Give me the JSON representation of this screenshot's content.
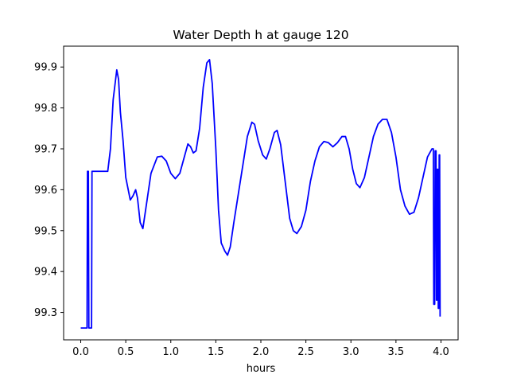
{
  "chart_data": {
    "type": "line",
    "title": "Water Depth h at gauge 120",
    "xlabel": "hours",
    "ylabel": "",
    "xlim": [
      -0.19,
      4.19
    ],
    "ylim": [
      99.233,
      99.951
    ],
    "xticks": [
      0.0,
      0.5,
      1.0,
      1.5,
      2.0,
      2.5,
      3.0,
      3.5,
      4.0
    ],
    "xtick_labels": [
      "0.0",
      "0.5",
      "1.0",
      "1.5",
      "2.0",
      "2.5",
      "3.0",
      "3.5",
      "4.0"
    ],
    "yticks": [
      99.3,
      99.4,
      99.5,
      99.6,
      99.7,
      99.8,
      99.9
    ],
    "ytick_labels": [
      "99.3",
      "99.4",
      "99.5",
      "99.6",
      "99.7",
      "99.8",
      "99.9"
    ],
    "grid": false,
    "legend": "none",
    "series": [
      {
        "color": "#0000ff",
        "points": [
          [
            0.0,
            99.262
          ],
          [
            0.07,
            99.262
          ],
          [
            0.075,
            99.645
          ],
          [
            0.085,
            99.645
          ],
          [
            0.09,
            99.262
          ],
          [
            0.12,
            99.262
          ],
          [
            0.125,
            99.645
          ],
          [
            0.2,
            99.645
          ],
          [
            0.3,
            99.645
          ],
          [
            0.33,
            99.7
          ],
          [
            0.36,
            99.82
          ],
          [
            0.4,
            99.893
          ],
          [
            0.42,
            99.87
          ],
          [
            0.44,
            99.79
          ],
          [
            0.47,
            99.72
          ],
          [
            0.5,
            99.63
          ],
          [
            0.55,
            99.575
          ],
          [
            0.58,
            99.585
          ],
          [
            0.61,
            99.6
          ],
          [
            0.63,
            99.58
          ],
          [
            0.66,
            99.52
          ],
          [
            0.69,
            99.505
          ],
          [
            0.72,
            99.55
          ],
          [
            0.78,
            99.64
          ],
          [
            0.85,
            99.68
          ],
          [
            0.9,
            99.682
          ],
          [
            0.95,
            99.67
          ],
          [
            1.0,
            99.64
          ],
          [
            1.05,
            99.627
          ],
          [
            1.1,
            99.64
          ],
          [
            1.15,
            99.68
          ],
          [
            1.19,
            99.712
          ],
          [
            1.22,
            99.705
          ],
          [
            1.25,
            99.69
          ],
          [
            1.28,
            99.695
          ],
          [
            1.32,
            99.75
          ],
          [
            1.36,
            99.85
          ],
          [
            1.4,
            99.91
          ],
          [
            1.43,
            99.918
          ],
          [
            1.46,
            99.86
          ],
          [
            1.5,
            99.7
          ],
          [
            1.53,
            99.55
          ],
          [
            1.56,
            99.47
          ],
          [
            1.6,
            99.45
          ],
          [
            1.63,
            99.44
          ],
          [
            1.66,
            99.46
          ],
          [
            1.7,
            99.52
          ],
          [
            1.75,
            99.59
          ],
          [
            1.8,
            99.66
          ],
          [
            1.85,
            99.73
          ],
          [
            1.9,
            99.765
          ],
          [
            1.93,
            99.76
          ],
          [
            1.97,
            99.72
          ],
          [
            2.02,
            99.685
          ],
          [
            2.06,
            99.675
          ],
          [
            2.1,
            99.7
          ],
          [
            2.15,
            99.74
          ],
          [
            2.18,
            99.745
          ],
          [
            2.22,
            99.71
          ],
          [
            2.27,
            99.62
          ],
          [
            2.32,
            99.53
          ],
          [
            2.36,
            99.5
          ],
          [
            2.4,
            99.493
          ],
          [
            2.45,
            99.51
          ],
          [
            2.5,
            99.55
          ],
          [
            2.55,
            99.62
          ],
          [
            2.6,
            99.67
          ],
          [
            2.65,
            99.705
          ],
          [
            2.7,
            99.718
          ],
          [
            2.75,
            99.715
          ],
          [
            2.8,
            99.705
          ],
          [
            2.85,
            99.715
          ],
          [
            2.9,
            99.73
          ],
          [
            2.94,
            99.73
          ],
          [
            2.98,
            99.7
          ],
          [
            3.02,
            99.65
          ],
          [
            3.06,
            99.615
          ],
          [
            3.1,
            99.605
          ],
          [
            3.15,
            99.63
          ],
          [
            3.2,
            99.68
          ],
          [
            3.25,
            99.73
          ],
          [
            3.3,
            99.76
          ],
          [
            3.35,
            99.772
          ],
          [
            3.4,
            99.772
          ],
          [
            3.45,
            99.74
          ],
          [
            3.5,
            99.68
          ],
          [
            3.55,
            99.6
          ],
          [
            3.6,
            99.56
          ],
          [
            3.65,
            99.54
          ],
          [
            3.7,
            99.545
          ],
          [
            3.75,
            99.58
          ],
          [
            3.8,
            99.63
          ],
          [
            3.85,
            99.68
          ],
          [
            3.9,
            99.7
          ],
          [
            3.915,
            99.7
          ],
          [
            3.92,
            99.32
          ],
          [
            3.93,
            99.32
          ],
          [
            3.935,
            99.695
          ],
          [
            3.945,
            99.695
          ],
          [
            3.95,
            99.33
          ],
          [
            3.955,
            99.33
          ],
          [
            3.96,
            99.65
          ],
          [
            3.965,
            99.65
          ],
          [
            3.97,
            99.31
          ],
          [
            3.975,
            99.31
          ],
          [
            3.98,
            99.685
          ],
          [
            3.985,
            99.685
          ],
          [
            3.99,
            99.29
          ]
        ]
      }
    ]
  }
}
